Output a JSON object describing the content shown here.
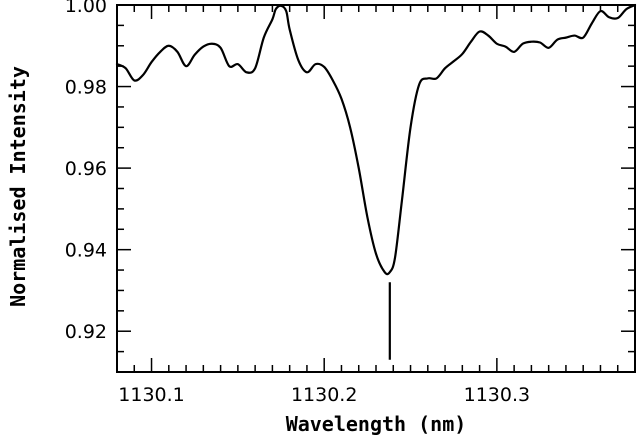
{
  "chart_data": {
    "type": "line",
    "title": "",
    "xlabel": "Wavelength (nm)",
    "ylabel": "Normalised Intensity",
    "xlim": [
      1130.08,
      1130.38
    ],
    "ylim": [
      0.91,
      1.0
    ],
    "grid": false,
    "legend": "none",
    "x_ticks": [
      1130.1,
      1130.2,
      1130.3
    ],
    "x_tick_labels": [
      "1130.1",
      "1130.2",
      "1130.3"
    ],
    "y_ticks": [
      0.92,
      0.94,
      0.96,
      0.98,
      1.0
    ],
    "y_tick_labels": [
      "0.92",
      "0.94",
      "0.96",
      "0.98",
      "1.00"
    ],
    "series": [
      {
        "x": [
          1130.08,
          1130.085,
          1130.09,
          1130.095,
          1130.1,
          1130.105,
          1130.11,
          1130.115,
          1130.12,
          1130.125,
          1130.13,
          1130.135,
          1130.14,
          1130.145,
          1130.15,
          1130.155,
          1130.16,
          1130.165,
          1130.17,
          1130.172,
          1130.175,
          1130.178,
          1130.18,
          1130.185,
          1130.19,
          1130.195,
          1130.2,
          1130.205,
          1130.21,
          1130.215,
          1130.22,
          1130.225,
          1130.23,
          1130.235,
          1130.238,
          1130.241,
          1130.245,
          1130.25,
          1130.255,
          1130.26,
          1130.265,
          1130.27,
          1130.275,
          1130.28,
          1130.285,
          1130.29,
          1130.295,
          1130.3,
          1130.305,
          1130.31,
          1130.315,
          1130.32,
          1130.325,
          1130.33,
          1130.335,
          1130.34,
          1130.345,
          1130.35,
          1130.355,
          1130.36,
          1130.365,
          1130.37,
          1130.375,
          1130.38
        ],
        "y": [
          0.9855,
          0.9845,
          0.9815,
          0.9828,
          0.986,
          0.9885,
          0.99,
          0.9885,
          0.985,
          0.9878,
          0.9898,
          0.9905,
          0.9895,
          0.985,
          0.9855,
          0.9835,
          0.9845,
          0.992,
          0.9965,
          0.999,
          0.9998,
          0.9985,
          0.994,
          0.9865,
          0.9835,
          0.9855,
          0.9848,
          0.9815,
          0.977,
          0.97,
          0.96,
          0.948,
          0.939,
          0.9345,
          0.9345,
          0.938,
          0.952,
          0.97,
          0.9805,
          0.982,
          0.982,
          0.9845,
          0.9862,
          0.988,
          0.991,
          0.9935,
          0.9925,
          0.9905,
          0.9898,
          0.9885,
          0.9905,
          0.991,
          0.9908,
          0.9895,
          0.9915,
          0.992,
          0.9925,
          0.992,
          0.9955,
          0.9985,
          0.997,
          0.9968,
          0.999,
          1.0
        ]
      }
    ],
    "annotations": [
      {
        "type": "vertical-marker",
        "x": 1130.238,
        "y_top": 0.932,
        "y_bottom": 0.913
      }
    ]
  }
}
